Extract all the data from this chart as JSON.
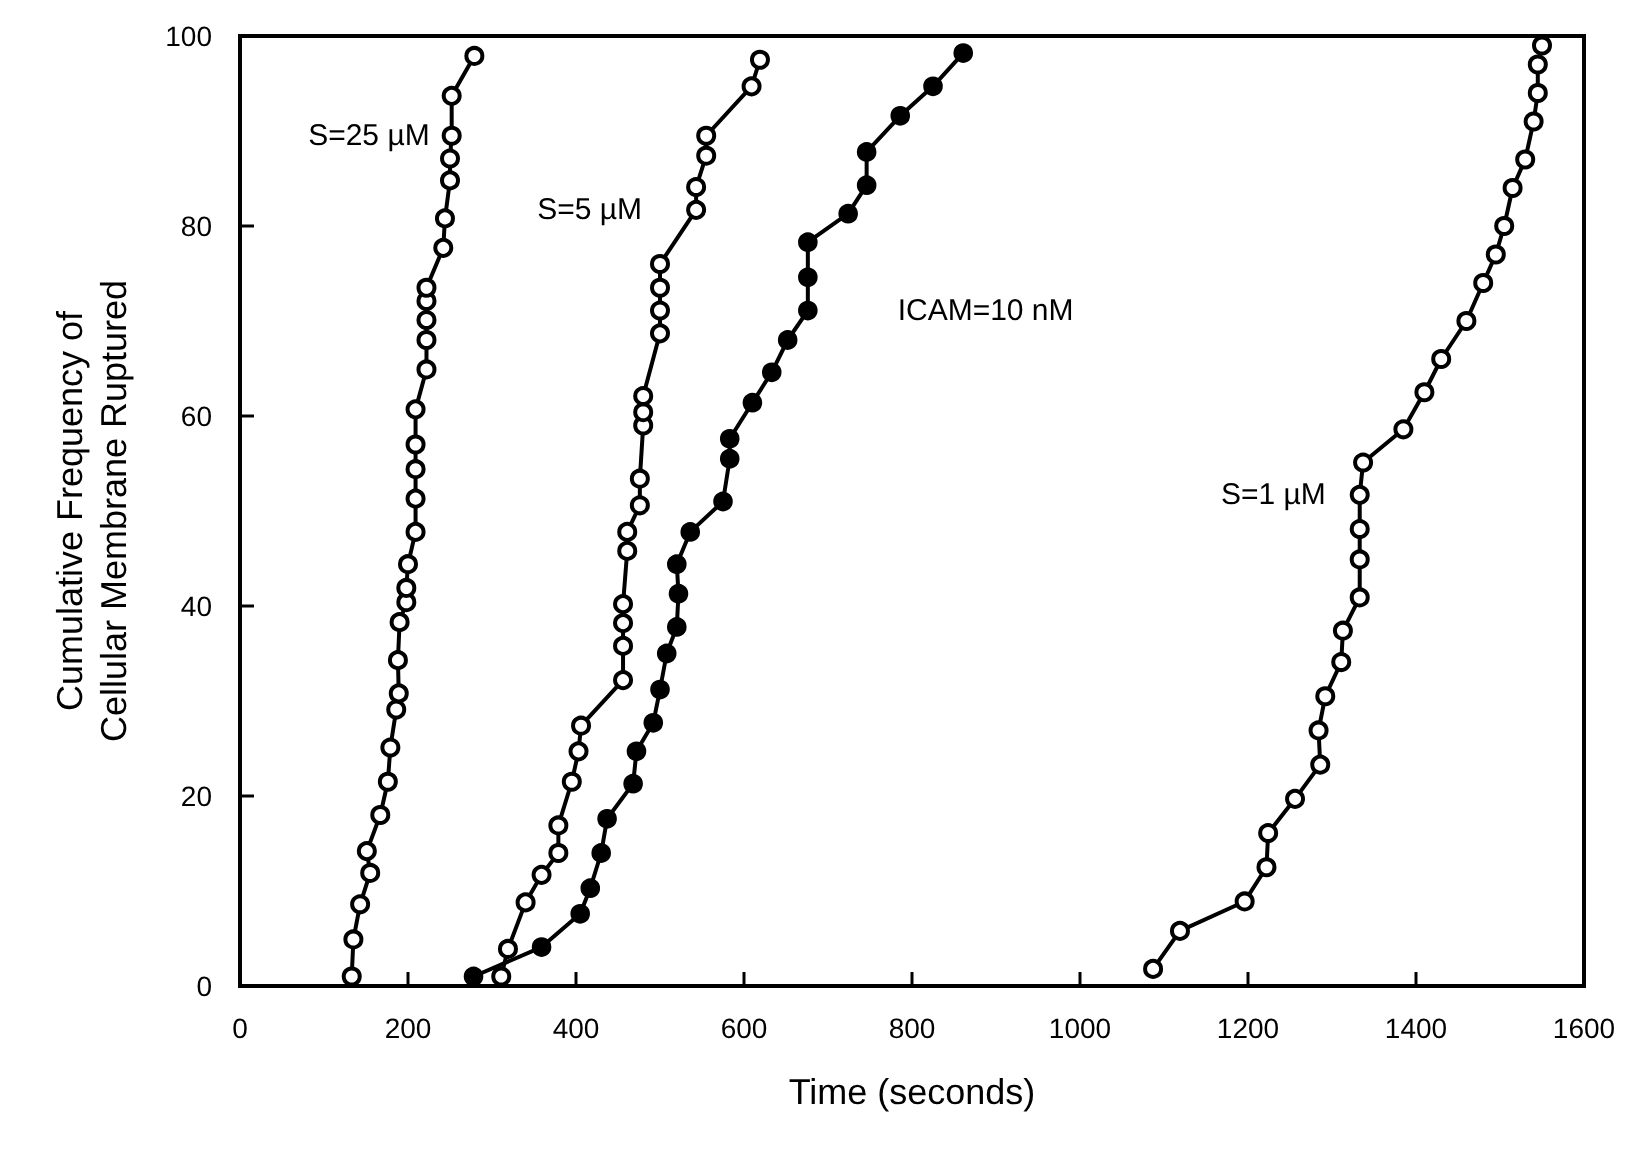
{
  "chart_data": {
    "type": "line",
    "xlabel": "Time (seconds)",
    "ylabel": "Cumulative Frequency of\nCellular Membrane Ruptured",
    "xlim": [
      0,
      1600
    ],
    "xticks": [
      0,
      200,
      400,
      600,
      800,
      1000,
      1200,
      1400,
      1600
    ],
    "ylim": [
      0,
      100
    ],
    "yticks": [
      0,
      20,
      40,
      60,
      80,
      100
    ],
    "grid": false,
    "legend": false,
    "marker": "circle",
    "line_style": "solid",
    "series": [
      {
        "name": "S=25 µM",
        "color": "#000000",
        "x": [
          133,
          135,
          143,
          155,
          151,
          167,
          176,
          179,
          186,
          189,
          188,
          190,
          198,
          198,
          200,
          209,
          209,
          209,
          209,
          209,
          222,
          222,
          222,
          222,
          222,
          242,
          244,
          250,
          250,
          252,
          252,
          279
        ],
        "values": [
          1.0,
          4.9,
          8.6,
          11.9,
          14.2,
          18.0,
          21.5,
          25.1,
          29.1,
          30.8,
          34.3,
          38.3,
          40.4,
          41.9,
          44.4,
          47.8,
          51.3,
          54.4,
          57.0,
          60.7,
          64.9,
          68.0,
          70.1,
          72.1,
          73.5,
          77.7,
          80.8,
          84.8,
          87.1,
          89.5,
          93.7,
          97.9
        ]
      },
      {
        "name": "S=5 µM",
        "color": "#000000",
        "x": [
          311,
          319,
          340,
          359,
          379,
          379,
          395,
          403,
          406,
          456,
          456,
          456,
          456,
          461,
          461,
          476,
          476,
          480,
          480,
          480,
          500,
          500,
          500,
          500,
          543,
          543,
          555,
          555,
          609,
          619
        ],
        "values": [
          1.0,
          3.9,
          8.8,
          11.7,
          14.0,
          16.9,
          21.5,
          24.7,
          27.4,
          32.2,
          35.8,
          38.2,
          40.2,
          45.8,
          47.8,
          50.6,
          53.4,
          59.0,
          60.4,
          62.1,
          68.7,
          71.1,
          73.5,
          76.0,
          81.7,
          84.1,
          87.4,
          89.5,
          94.7,
          97.5
        ]
      },
      {
        "name": "ICAM=10 nM",
        "color": "#000000",
        "marker": "circle",
        "x": [
          278,
          359,
          405,
          417,
          430,
          437,
          468,
          472,
          492,
          500,
          508,
          520,
          522,
          520,
          536,
          575,
          583,
          583,
          610,
          633,
          652,
          676,
          676,
          676,
          724,
          746,
          746,
          786,
          825,
          861
        ],
        "values": [
          1.0,
          4.1,
          7.6,
          10.3,
          14.0,
          17.6,
          21.3,
          24.7,
          27.7,
          31.2,
          35.0,
          37.8,
          41.3,
          44.4,
          47.8,
          51.0,
          55.5,
          57.6,
          61.4,
          64.6,
          68.0,
          71.1,
          74.6,
          78.3,
          81.3,
          84.3,
          87.8,
          91.6,
          94.7,
          98.2
        ]
      },
      {
        "name": "S=1 µM",
        "color": "#000000",
        "x": [
          1087,
          1119,
          1196,
          1222,
          1224,
          1256,
          1286,
          1284,
          1292,
          1311,
          1313,
          1333,
          1333,
          1333,
          1333,
          1337,
          1385,
          1410,
          1430,
          1460,
          1480,
          1495,
          1505,
          1515,
          1530,
          1540,
          1545,
          1545,
          1550
        ],
        "values": [
          1.8,
          5.8,
          8.9,
          12.5,
          16.1,
          19.7,
          23.3,
          26.9,
          30.5,
          34.1,
          37.4,
          40.9,
          44.9,
          48.1,
          51.7,
          55.1,
          58.6,
          62.5,
          66.0,
          70.0,
          74.0,
          77.0,
          80.0,
          84.0,
          87.0,
          91.0,
          94.0,
          97.0,
          99.0
        ]
      }
    ]
  }
}
